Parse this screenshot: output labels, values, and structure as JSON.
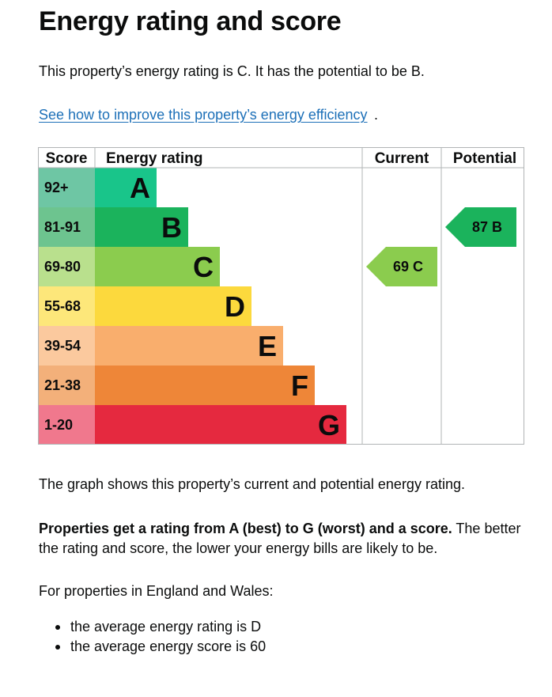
{
  "page": {
    "title": "Energy rating and score",
    "intro": "This property’s energy rating is C. It has the potential to be B.",
    "improve_link": "See how to improve this property’s energy efficiency",
    "improve_link_suffix": ".",
    "graph_description": "The graph shows this property’s current and potential energy rating.",
    "rating_info_bold": "Properties get a rating from A (best) to G (worst) and a score.",
    "rating_info_rest": " The better the rating and score, the lower your energy bills are likely to be.",
    "average_intro": "For properties in England and Wales:",
    "average_items": [
      "the average energy rating is D",
      "the average energy score is 60"
    ]
  },
  "chart_data": {
    "type": "bar",
    "title": "",
    "headers": {
      "score": "Score",
      "rating": "Energy rating",
      "current": "Current",
      "potential": "Potential"
    },
    "bands": [
      {
        "letter": "A",
        "score_range": "92+",
        "color": "#008054",
        "score_color": "#6ec6a4",
        "bar_color": "#19c58a"
      },
      {
        "letter": "B",
        "score_range": "81-91",
        "color": "#19b459",
        "score_color": "#6dc48f",
        "bar_color": "#1bb35c"
      },
      {
        "letter": "C",
        "score_range": "69-80",
        "color": "#8dce46",
        "score_color": "#b9e08d",
        "bar_color": "#8bcc4e"
      },
      {
        "letter": "D",
        "score_range": "55-68",
        "color": "#ffd500",
        "score_color": "#fde77a",
        "bar_color": "#fcd93d"
      },
      {
        "letter": "E",
        "score_range": "39-54",
        "color": "#fcaa65",
        "score_color": "#fbc99e",
        "bar_color": "#f9ae6d"
      },
      {
        "letter": "F",
        "score_range": "21-38",
        "color": "#ef8023",
        "score_color": "#f3b07a",
        "bar_color": "#ee8638"
      },
      {
        "letter": "G",
        "score_range": "1-20",
        "color": "#e9153b",
        "score_color": "#f0788d",
        "bar_color": "#e5293f"
      }
    ],
    "current": {
      "score": 69,
      "rating": "C",
      "label": "69 C",
      "color": "#8bcc4e"
    },
    "potential": {
      "score": 87,
      "rating": "B",
      "label": "87 B",
      "color": "#1bb35c"
    }
  }
}
